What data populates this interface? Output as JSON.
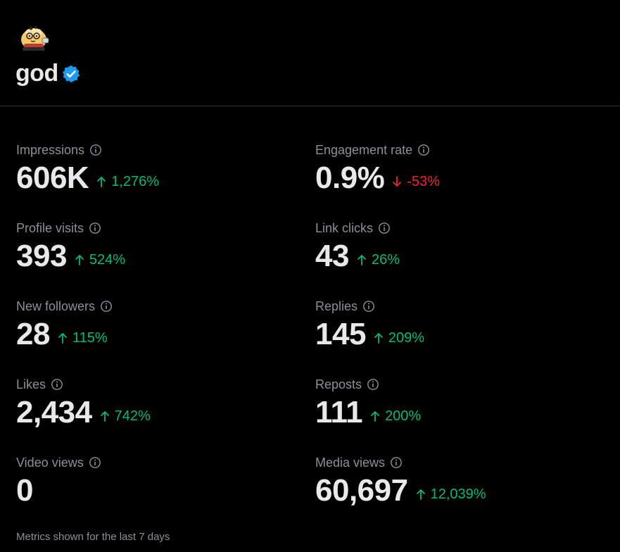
{
  "profile": {
    "name": "god",
    "verified_color": "#1d9bf0",
    "avatar_icon": "cartoon-character-avatar"
  },
  "metrics": [
    {
      "label": "Impressions",
      "value": "606K",
      "change": "1,276%",
      "direction": "up"
    },
    {
      "label": "Engagement rate",
      "value": "0.9%",
      "change": "-53%",
      "direction": "down"
    },
    {
      "label": "Profile visits",
      "value": "393",
      "change": "524%",
      "direction": "up"
    },
    {
      "label": "Link clicks",
      "value": "43",
      "change": "26%",
      "direction": "up"
    },
    {
      "label": "New followers",
      "value": "28",
      "change": "115%",
      "direction": "up"
    },
    {
      "label": "Replies",
      "value": "145",
      "change": "209%",
      "direction": "up"
    },
    {
      "label": "Likes",
      "value": "2,434",
      "change": "742%",
      "direction": "up"
    },
    {
      "label": "Reposts",
      "value": "111",
      "change": "200%",
      "direction": "up"
    },
    {
      "label": "Video views",
      "value": "0",
      "change": "",
      "direction": "none"
    },
    {
      "label": "Media views",
      "value": "60,697",
      "change": "12,039%",
      "direction": "up"
    }
  ],
  "colors": {
    "up": "#00ba7c",
    "down": "#f4212e",
    "label": "#8b9096",
    "value": "#e7e9ea"
  },
  "footer": {
    "note": "Metrics shown for the last 7 days"
  }
}
